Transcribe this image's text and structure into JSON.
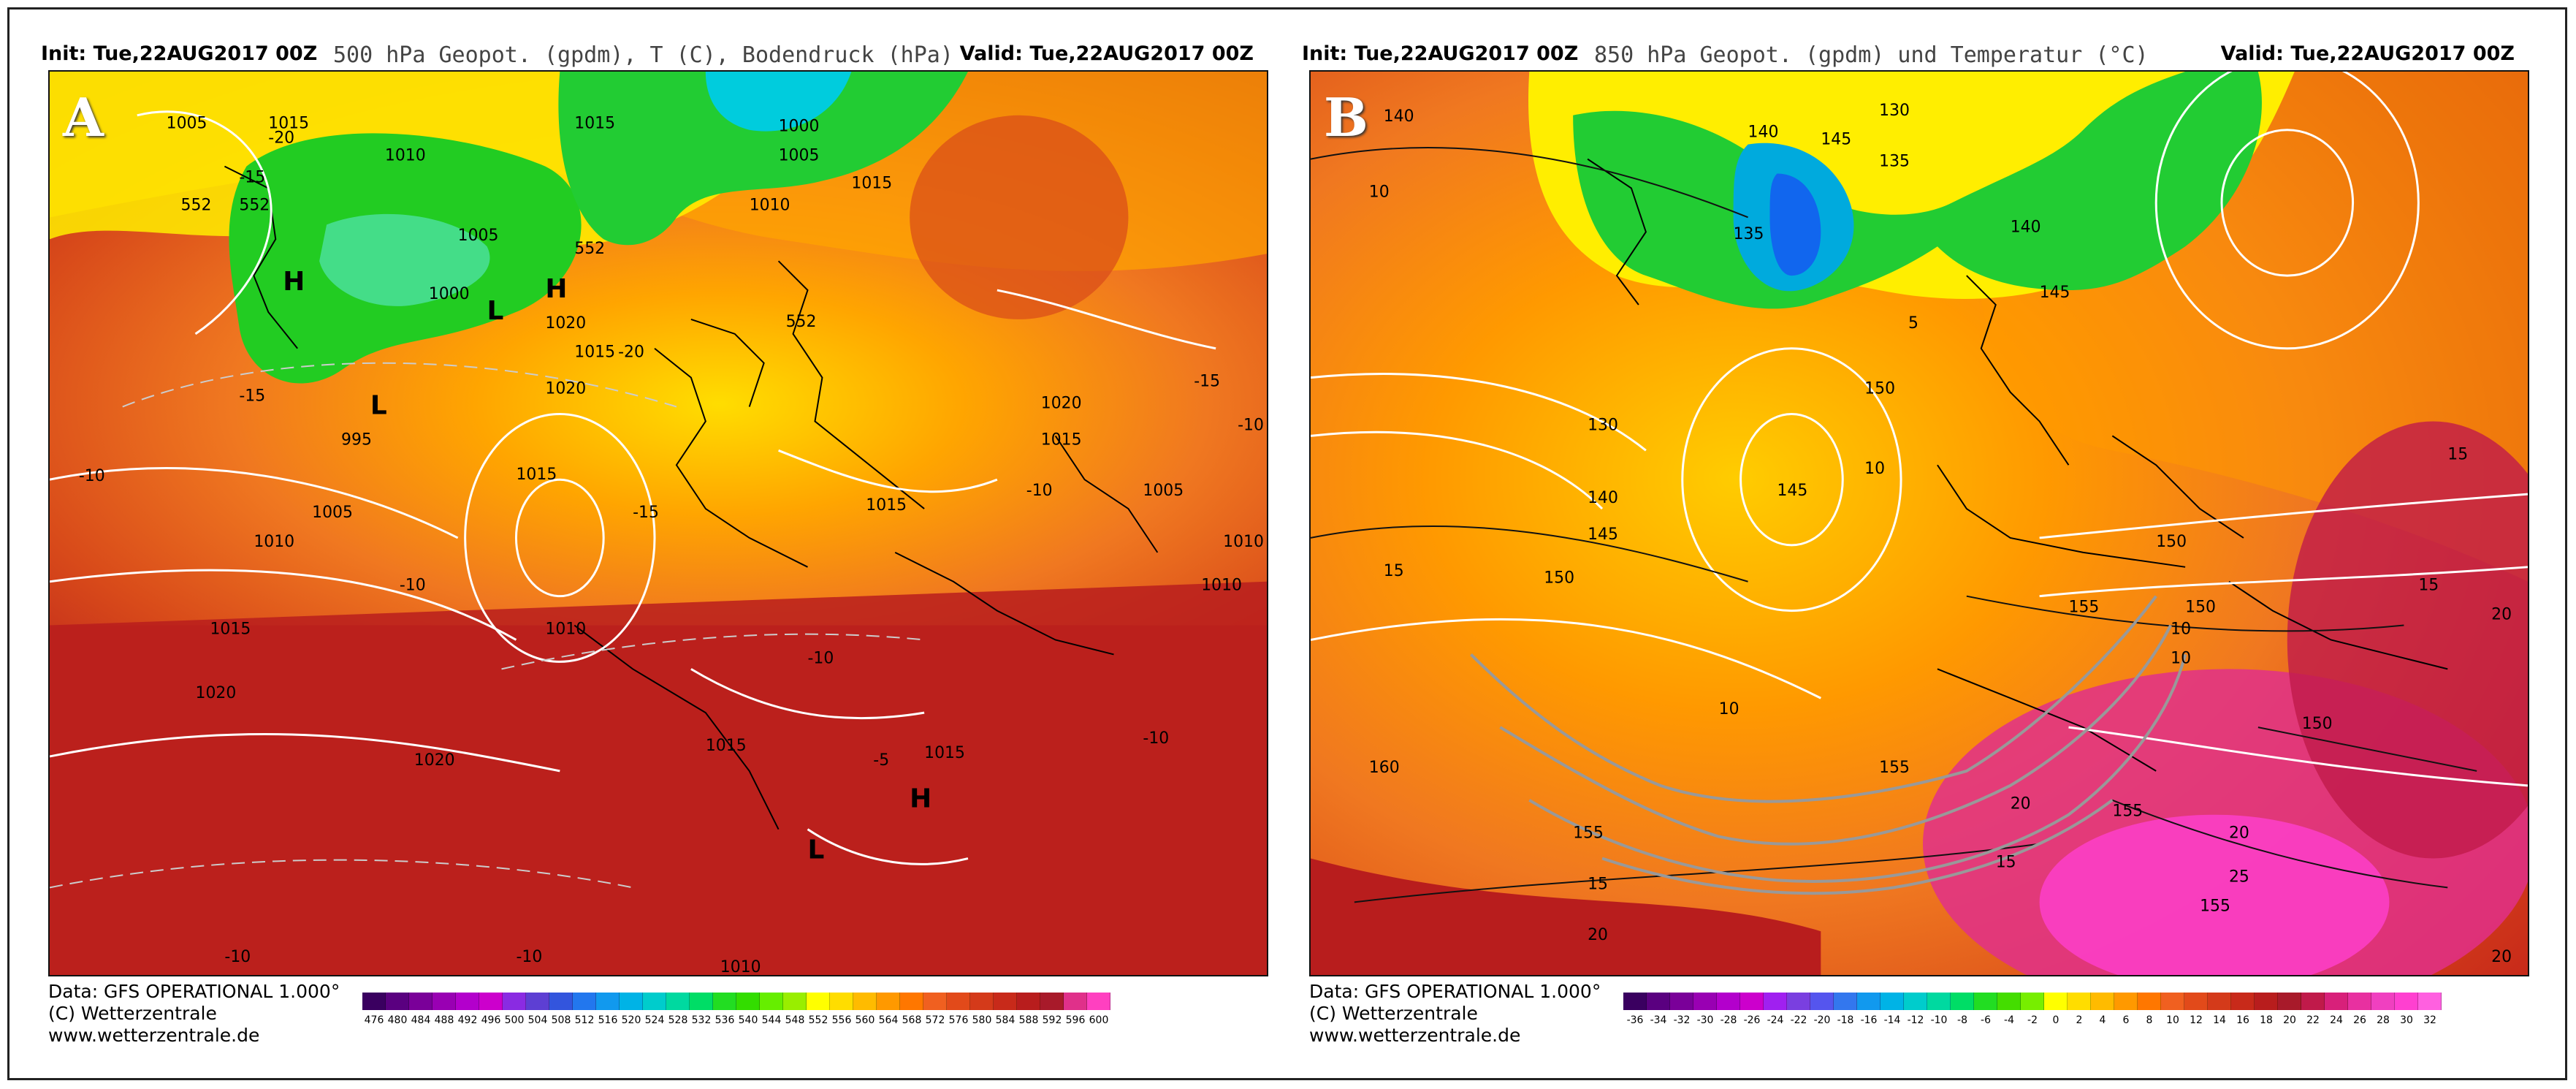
{
  "panels": [
    {
      "id": "A",
      "letter": "A",
      "init": "Init: Tue,22AUG2017 00Z",
      "title": "500 hPa Geopot. (gpdm), T (C), Bodendruck (hPa)",
      "valid": "Valid: Tue,22AUG2017 00Z",
      "credit_lines": [
        "Data: GFS OPERATIONAL 1.000°",
        "(C) Wetterzentrale",
        "www.wetterzentrale.de"
      ],
      "colorbar": {
        "labels": [
          "476",
          "480",
          "484",
          "488",
          "492",
          "496",
          "500",
          "504",
          "508",
          "512",
          "516",
          "520",
          "524",
          "528",
          "532",
          "536",
          "540",
          "544",
          "548",
          "552",
          "556",
          "560",
          "564",
          "568",
          "572",
          "576",
          "580",
          "584",
          "588",
          "592",
          "596",
          "600"
        ],
        "colors": [
          "#3a0060",
          "#5a0080",
          "#7a0099",
          "#9900b3",
          "#b300cc",
          "#cc00cc",
          "#8a2be2",
          "#5d3fd3",
          "#3355dd",
          "#2277ee",
          "#1199ee",
          "#00b3e6",
          "#00cccc",
          "#00d9a0",
          "#00dd66",
          "#22dd22",
          "#33dd00",
          "#66ee00",
          "#99ee00",
          "#ffff00",
          "#ffdd00",
          "#ffbb00",
          "#ff9900",
          "#ff7700",
          "#f06020",
          "#e24a1a",
          "#d43a1a",
          "#c82a1a",
          "#b81d1d",
          "#a81a2a",
          "#e0308a",
          "#ff40c0"
        ]
      },
      "labels": {
        "pressure": [
          "1005",
          "1015",
          "1010",
          "1015",
          "1000",
          "1005",
          "1010",
          "1015",
          "1005",
          "1000",
          "1020",
          "1015",
          "995",
          "1020",
          "1015",
          "1005",
          "1010",
          "1015",
          "1010",
          "1020",
          "1015",
          "1005",
          "1010",
          "1010",
          "1020",
          "1015",
          "1015",
          "1015",
          "1010",
          "1020"
        ],
        "temperature": [
          "-20",
          "-20",
          "-15",
          "-15",
          "-10",
          "-10",
          "-15",
          "-10",
          "-10",
          "-15",
          "-10",
          "-10",
          "-10",
          "-5",
          "-10"
        ],
        "geopotential": [
          "552",
          "552",
          "552",
          "552"
        ],
        "highs": [
          "H",
          "H",
          "H"
        ],
        "lows": [
          "L",
          "L",
          "L"
        ]
      }
    },
    {
      "id": "B",
      "letter": "B",
      "init": "Init: Tue,22AUG2017 00Z",
      "title": "850 hPa Geopot. (gpdm) und Temperatur (°C)",
      "valid": "Valid: Tue,22AUG2017 00Z",
      "credit_lines": [
        "Data: GFS OPERATIONAL 1.000°",
        "(C) Wetterzentrale",
        "www.wetterzentrale.de"
      ],
      "colorbar": {
        "labels": [
          "-36",
          "-34",
          "-32",
          "-30",
          "-28",
          "-26",
          "-24",
          "-22",
          "-20",
          "-18",
          "-16",
          "-14",
          "-12",
          "-10",
          "-8",
          "-6",
          "-4",
          "-2",
          "0",
          "2",
          "4",
          "6",
          "8",
          "10",
          "12",
          "14",
          "16",
          "18",
          "20",
          "22",
          "24",
          "26",
          "28",
          "30",
          "32"
        ],
        "colors": [
          "#3a0060",
          "#5a0080",
          "#7a0099",
          "#9900b3",
          "#b300cc",
          "#cc00cc",
          "#a020f0",
          "#7a3fe0",
          "#5555ee",
          "#3377ee",
          "#1199ee",
          "#00b3e6",
          "#00cccc",
          "#00d9a0",
          "#00dd66",
          "#22dd22",
          "#44dd00",
          "#77ee00",
          "#ffff00",
          "#ffdd00",
          "#ffbb00",
          "#ff9900",
          "#ff7700",
          "#f06020",
          "#e24a1a",
          "#d43a1a",
          "#c82a1a",
          "#b81d1d",
          "#a81a2a",
          "#c01a4a",
          "#d8207a",
          "#e830a0",
          "#f040c0",
          "#ff40d0",
          "#ff60e0"
        ]
      },
      "labels": {
        "geopotential": [
          "140",
          "130",
          "135",
          "140",
          "145",
          "135",
          "140",
          "145",
          "130",
          "150",
          "140",
          "145",
          "145",
          "150",
          "150",
          "155",
          "150",
          "160",
          "155",
          "155",
          "155",
          "155",
          "150"
        ],
        "temperature": [
          "10",
          "5",
          "15",
          "10",
          "10",
          "15",
          "10",
          "20",
          "15",
          "20",
          "15",
          "20",
          "25",
          "20",
          "15",
          "10",
          "20"
        ]
      }
    }
  ]
}
